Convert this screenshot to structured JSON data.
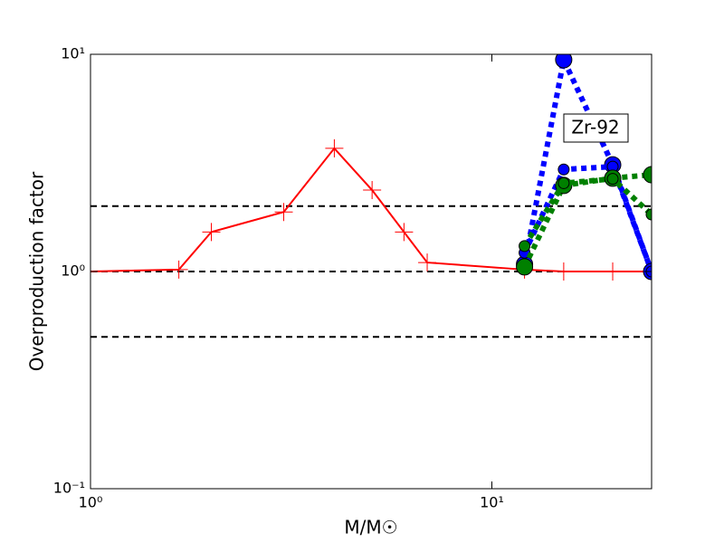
{
  "chart_data": {
    "type": "line",
    "xlabel": "M/M☉",
    "ylabel": "Overproduction factor",
    "xscale": "log",
    "yscale": "log",
    "xlim": [
      1,
      25
    ],
    "ylim": [
      0.1,
      10
    ],
    "xticks": [
      {
        "value": 1,
        "label": "10⁰"
      },
      {
        "value": 10,
        "label": "10¹"
      }
    ],
    "yticks": [
      {
        "value": 0.1,
        "label": "10⁻¹"
      },
      {
        "value": 1,
        "label": "10⁰"
      },
      {
        "value": 10,
        "label": "10¹"
      }
    ],
    "hlines": [
      2,
      1,
      0.5
    ],
    "annotation": "Zr-92",
    "series": [
      {
        "color": "#ff0000",
        "marker": "plus",
        "linestyle": "solid",
        "x": [
          1,
          1.66,
          2,
          3.03,
          4.05,
          5.03,
          6.04,
          6.9,
          12.06,
          15.1,
          20,
          25
        ],
        "values": [
          1.0,
          1.02,
          1.52,
          1.88,
          3.69,
          2.37,
          1.52,
          1.1,
          1.02,
          1.0,
          1.0,
          1.0
        ]
      },
      {
        "color": "#0000ff",
        "marker": "circle-large",
        "linestyle": "dotted",
        "x": [
          12.06,
          15.1,
          20,
          25
        ],
        "values": [
          1.08,
          9.44,
          3.1,
          1.0
        ]
      },
      {
        "color": "#0000ff",
        "marker": "circle-small",
        "linestyle": "dotted",
        "x": [
          12.06,
          15.1,
          20,
          25
        ],
        "values": [
          1.22,
          2.95,
          3.04,
          1.0
        ]
      },
      {
        "color": "#008000",
        "marker": "circle-large",
        "linestyle": "dotted",
        "x": [
          12.06,
          15.1,
          20,
          25
        ],
        "values": [
          1.05,
          2.49,
          2.69,
          2.79
        ]
      },
      {
        "color": "#008000",
        "marker": "circle-small",
        "linestyle": "dotted",
        "x": [
          12.06,
          15.1,
          20,
          25
        ],
        "values": [
          1.31,
          2.55,
          2.67,
          1.83
        ]
      }
    ]
  }
}
